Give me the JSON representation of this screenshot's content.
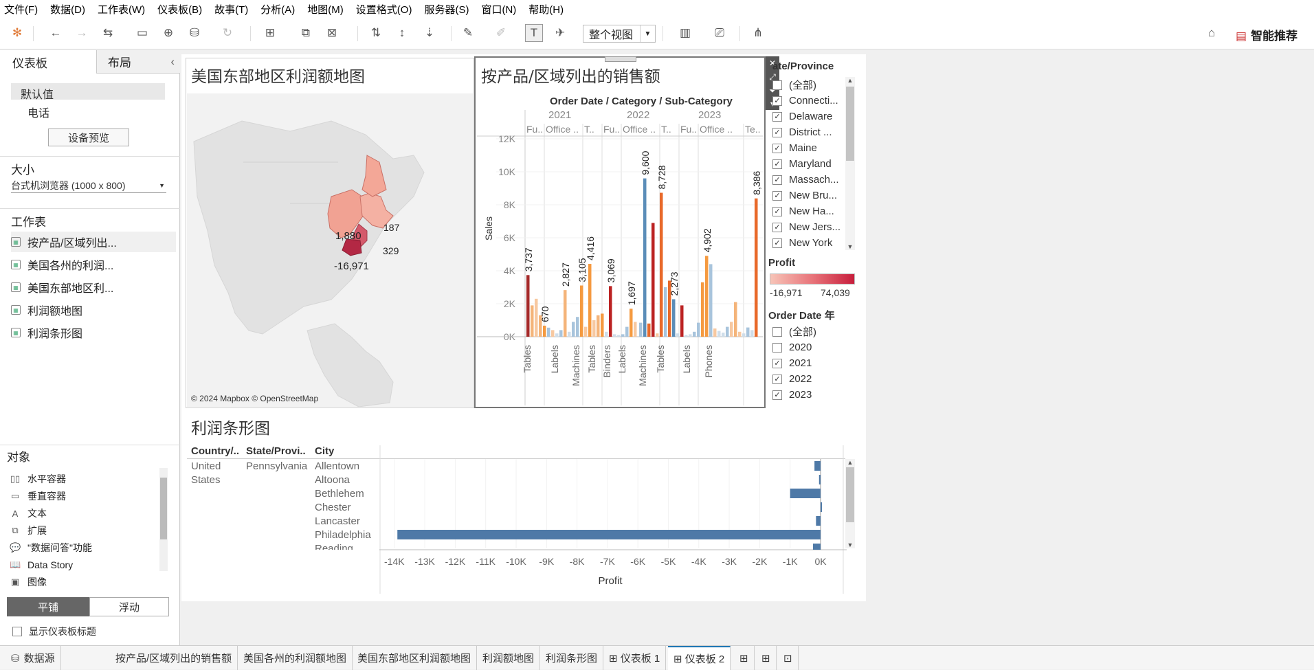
{
  "menu": [
    "文件(F)",
    "数据(D)",
    "工作表(W)",
    "仪表板(B)",
    "故事(T)",
    "分析(A)",
    "地图(M)",
    "设置格式(O)",
    "服务器(S)",
    "窗口(N)",
    "帮助(H)"
  ],
  "toolbar": {
    "view_label": "整个视图",
    "smart_label": "智能推荐"
  },
  "left_tabs": {
    "dashboard": "仪表板",
    "layout": "布局",
    "collapse": "‹"
  },
  "device": {
    "default": "默认值",
    "phone": "电话",
    "preview_btn": "设备预览"
  },
  "size": {
    "title": "大小",
    "value": "台式机浏览器 (1000 x 800)"
  },
  "worksheets": {
    "title": "工作表",
    "items": [
      "按产品/区域列出...",
      "美国各州的利润...",
      "美国东部地区利...",
      "利润额地图",
      "利润条形图"
    ]
  },
  "objects": {
    "title": "对象",
    "items": [
      {
        "label": "水平容器",
        "icon": "horizontal-container-icon",
        "glyph": "▯▯"
      },
      {
        "label": "垂直容器",
        "icon": "vertical-container-icon",
        "glyph": "▭"
      },
      {
        "label": "文本",
        "icon": "text-icon",
        "glyph": "A"
      },
      {
        "label": "扩展",
        "icon": "extension-icon",
        "glyph": "⧉"
      },
      {
        "label": "\"数据问答\"功能",
        "icon": "ask-data-icon",
        "glyph": "💬"
      },
      {
        "label": "Data Story",
        "icon": "data-story-icon",
        "glyph": "📖"
      },
      {
        "label": "图像",
        "icon": "image-icon",
        "glyph": "▣"
      }
    ],
    "tile": "平铺",
    "float": "浮动",
    "show_title": "显示仪表板标题"
  },
  "map": {
    "title": "美国东部地区利润额地图",
    "attribution": "© 2024 Mapbox © OpenStreetMap",
    "labels": [
      "1,880",
      "187",
      "329",
      "-16,971"
    ]
  },
  "sales_chart": {
    "title": "按产品/区域列出的销售额",
    "header": "Order Date / Category / Sub-Category",
    "years": [
      "2021",
      "2022",
      "2023"
    ],
    "categories": [
      "Fu..",
      "Office ..",
      "T..",
      "Fu..",
      "Office ..",
      "T..",
      "Fu..",
      "Office ..",
      "Te.."
    ],
    "ylabel": "Sales",
    "yticks": [
      "12K",
      "10K",
      "8K",
      "6K",
      "4K",
      "2K",
      "0K"
    ],
    "subcats": [
      "Tables",
      "Labels",
      "Machines",
      "Tables",
      "Binders",
      "Labels",
      "Machines",
      "Tables",
      "Labels",
      "Phones"
    ]
  },
  "chart_data": {
    "type": "bar",
    "title": "按产品/区域列出的销售额",
    "ylabel": "Sales",
    "ylim": [
      0,
      12000
    ],
    "labeled_values": [
      {
        "group": "2021 Fu..",
        "value": 3737,
        "label": "3,737"
      },
      {
        "group": "2021 Fu..",
        "value": 670,
        "label": "670"
      },
      {
        "group": "2021 Office ..",
        "value": 2827,
        "label": "2,827"
      },
      {
        "group": "2021 T..",
        "value": 3105,
        "label": "3,105"
      },
      {
        "group": "2021 T..",
        "value": 4416,
        "label": "4,416"
      },
      {
        "group": "2022 Fu..",
        "value": 3069,
        "label": "3,069"
      },
      {
        "group": "2022 Office ..",
        "value": 1697,
        "label": "1,697"
      },
      {
        "group": "2022 T..",
        "value": 9600,
        "label": "9,600"
      },
      {
        "group": "2022 T..",
        "value": 8728,
        "label": "8,728"
      },
      {
        "group": "2023 Fu..",
        "value": 2273,
        "label": "2,273"
      },
      {
        "group": "2023 Office ..",
        "value": 4902,
        "label": "4,902"
      },
      {
        "group": "2023 Te..",
        "value": 8386,
        "label": "8,386"
      }
    ]
  },
  "filters": {
    "state_title": "ate/Province",
    "states": [
      "(全部)",
      "Connecti...",
      "Delaware",
      "District ...",
      "Maine",
      "Maryland",
      "Massach...",
      "New Bru...",
      "New Ha...",
      "New Jers...",
      "New York"
    ],
    "states_checked": [
      false,
      true,
      true,
      true,
      true,
      true,
      true,
      true,
      true,
      true,
      true
    ],
    "profit_title": "Profit",
    "profit_min": "-16,971",
    "profit_max": "74,039",
    "year_title": "Order Date 年",
    "years": [
      "(全部)",
      "2020",
      "2021",
      "2022",
      "2023"
    ],
    "years_checked": [
      false,
      false,
      true,
      true,
      true
    ]
  },
  "profit_bar": {
    "title": "利润条形图",
    "headers": [
      "Country/..",
      "State/Provi..",
      "City"
    ],
    "country": [
      "United",
      "States"
    ],
    "state": "Pennsylvania",
    "cities": [
      "Allentown",
      "Altoona",
      "Bethlehem",
      "Chester",
      "Lancaster",
      "Philadelphia",
      "Reading"
    ],
    "xticks": [
      "-14K",
      "-13K",
      "-12K",
      "-11K",
      "-10K",
      "-9K",
      "-8K",
      "-7K",
      "-6K",
      "-5K",
      "-4K",
      "-3K",
      "-2K",
      "-1K",
      "0K"
    ],
    "xlabel": "Profit"
  },
  "bottom_tabs": [
    "数据源",
    "按产品/区域列出的销售额",
    "美国各州的利润额地图",
    "美国东部地区利润额地图",
    "利润额地图",
    "利润条形图",
    "⊞ 仪表板 1",
    "⊞ 仪表板 2"
  ]
}
